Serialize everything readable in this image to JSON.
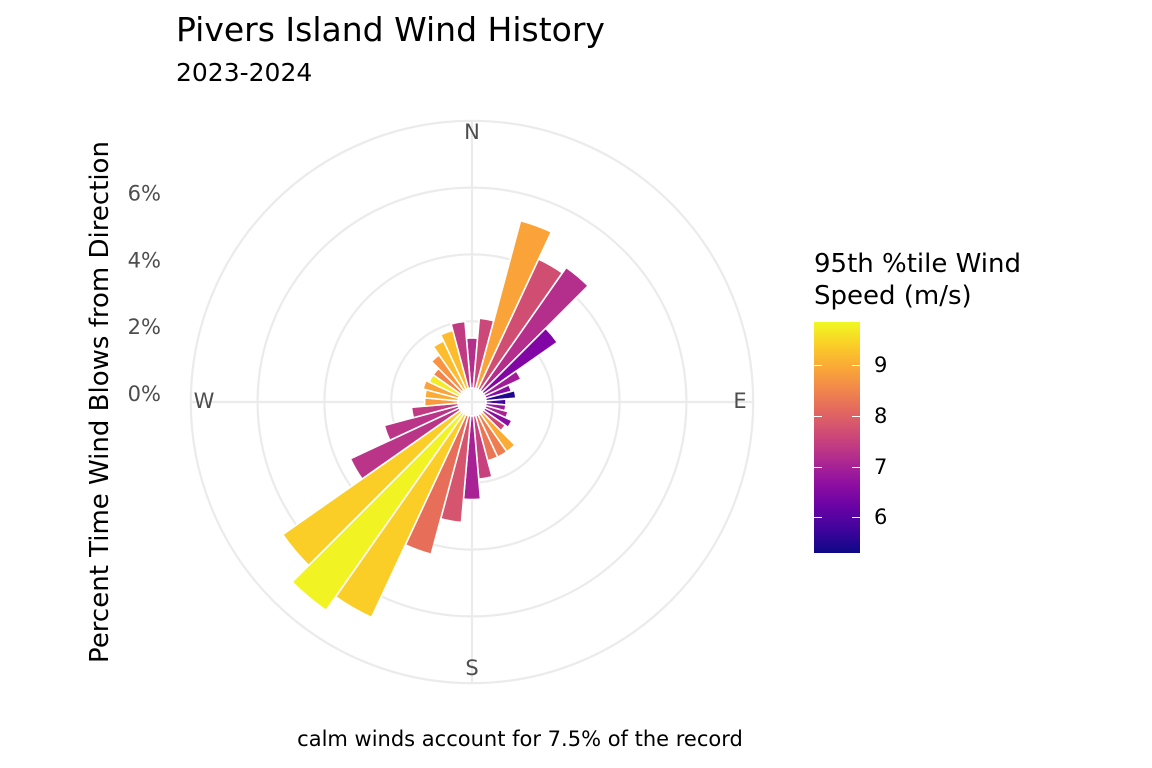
{
  "chart_data": {
    "type": "bar",
    "subtype": "polar-wind-rose",
    "title": "Pivers Island Wind History",
    "subtitle": "2023-2024",
    "ylabel": "Percent Time Wind Blows from Direction",
    "caption": "calm winds account for 7.5% of the record",
    "r_ticks": [
      "0%",
      "2%",
      "4%",
      "6%"
    ],
    "r_tick_values": [
      0,
      2,
      4,
      6
    ],
    "directions": [
      "N",
      "E",
      "S",
      "W"
    ],
    "bin_width_deg": 10,
    "legend": {
      "title_line1": "95th %tile Wind",
      "title_line2": "Speed (m/s)",
      "labels": [
        "9",
        "8",
        "7",
        "6"
      ],
      "label_values": [
        9,
        8,
        7,
        6
      ],
      "range": [
        5.3,
        9.85
      ],
      "palette": "plasma"
    },
    "bins": [
      {
        "direction": 0,
        "percent": 1.5,
        "speed": 7.2
      },
      {
        "direction": 10,
        "percent": 2.1,
        "speed": 7.6
      },
      {
        "direction": 20,
        "percent": 5.2,
        "speed": 8.9
      },
      {
        "direction": 30,
        "percent": 4.3,
        "speed": 7.7
      },
      {
        "direction": 40,
        "percent": 4.5,
        "speed": 7.2
      },
      {
        "direction": 50,
        "percent": 2.7,
        "speed": 6.5
      },
      {
        "direction": 60,
        "percent": 1.2,
        "speed": 6.9
      },
      {
        "direction": 70,
        "percent": 0.8,
        "speed": 6.6
      },
      {
        "direction": 80,
        "percent": 0.9,
        "speed": 5.5
      },
      {
        "direction": 90,
        "percent": 0.6,
        "speed": 5.8
      },
      {
        "direction": 100,
        "percent": 0.6,
        "speed": 6.8
      },
      {
        "direction": 110,
        "percent": 0.7,
        "speed": 7.0
      },
      {
        "direction": 120,
        "percent": 0.9,
        "speed": 6.6
      },
      {
        "direction": 130,
        "percent": 0.8,
        "speed": 7.6
      },
      {
        "direction": 140,
        "percent": 1.4,
        "speed": 9.0
      },
      {
        "direction": 150,
        "percent": 1.4,
        "speed": 8.4
      },
      {
        "direction": 160,
        "percent": 1.4,
        "speed": 8.3
      },
      {
        "direction": 170,
        "percent": 1.9,
        "speed": 7.5
      },
      {
        "direction": 180,
        "percent": 2.5,
        "speed": 7.0
      },
      {
        "direction": 190,
        "percent": 3.2,
        "speed": 7.8
      },
      {
        "direction": 200,
        "percent": 4.3,
        "speed": 8.2
      },
      {
        "direction": 210,
        "percent": 6.7,
        "speed": 9.4
      },
      {
        "direction": 220,
        "percent": 7.2,
        "speed": 9.8
      },
      {
        "direction": 230,
        "percent": 6.5,
        "speed": 9.4
      },
      {
        "direction": 240,
        "percent": 3.6,
        "speed": 7.3
      },
      {
        "direction": 250,
        "percent": 2.3,
        "speed": 7.3
      },
      {
        "direction": 260,
        "percent": 1.4,
        "speed": 7.4
      },
      {
        "direction": 270,
        "percent": 1.0,
        "speed": 8.8
      },
      {
        "direction": 280,
        "percent": 1.0,
        "speed": 9.0
      },
      {
        "direction": 290,
        "percent": 1.1,
        "speed": 8.9
      },
      {
        "direction": 300,
        "percent": 1.0,
        "speed": 9.7
      },
      {
        "direction": 310,
        "percent": 1.0,
        "speed": 8.5
      },
      {
        "direction": 320,
        "percent": 1.3,
        "speed": 8.7
      },
      {
        "direction": 330,
        "percent": 1.6,
        "speed": 9.2
      },
      {
        "direction": 340,
        "percent": 1.8,
        "speed": 9.2
      },
      {
        "direction": 350,
        "percent": 2.0,
        "speed": 7.4
      }
    ]
  }
}
